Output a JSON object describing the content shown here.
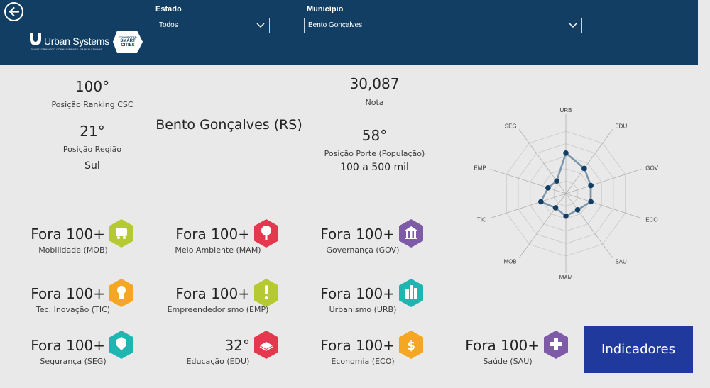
{
  "header": {
    "logo_text": "Urban Systems",
    "logo_tagline": "TRANSFORMANDO CONHECIMENTO EM RESULTADOS",
    "badge_text": [
      "CONNECTED",
      "SMART",
      "CITIES"
    ],
    "estado_label": "Estado",
    "estado_value": "Todos",
    "municipio_label": "Município",
    "municipio_value": "Bento Gonçalves"
  },
  "summary": {
    "city": "Bento Gonçalves (RS)",
    "ranking_value": "100°",
    "ranking_label": "Posição Ranking CSC",
    "region_value": "21°",
    "region_label": "Posição Região",
    "region_name": "Sul",
    "score_value": "30,087",
    "score_label": "Nota",
    "size_value": "58°",
    "size_label": "Posição Porte (População)",
    "size_range": "100 a 500 mil"
  },
  "tiles": [
    {
      "value": "Fora 100+",
      "label": "Mobilidade (MOB)",
      "color": "#b5c932",
      "icon": "bus-icon"
    },
    {
      "value": "Fora 100+",
      "label": "Meio Ambiente (MAM)",
      "color": "#e5384f",
      "icon": "tree-icon"
    },
    {
      "value": "Fora 100+",
      "label": "Governança (GOV)",
      "color": "#7d5ba6",
      "icon": "government-building-icon"
    },
    {
      "value": "Fora 100+",
      "label": "Tec. Inovação (TIC)",
      "color": "#f5a623",
      "icon": "lightbulb-icon"
    },
    {
      "value": "Fora 100+",
      "label": "Empreendedorismo (EMP)",
      "color": "#b5c932",
      "icon": "exclamation-icon"
    },
    {
      "value": "Fora 100+",
      "label": "Urbanismo (URB)",
      "color": "#1fb5b0",
      "icon": "city-buildings-icon"
    },
    {
      "value": "Fora 100+",
      "label": "Segurança (SEG)",
      "color": "#1fb5b0",
      "icon": "shield-icon"
    },
    {
      "value": "32°",
      "label": "Educação (EDU)",
      "color": "#e5384f",
      "icon": "book-icon"
    },
    {
      "value": "Fora 100+",
      "label": "Economia (ECO)",
      "color": "#f5a623",
      "icon": "money-icon"
    },
    {
      "value": "Fora 100+",
      "label": "Saúde (SAU)",
      "color": "#7d5ba6",
      "icon": "health-cross-icon"
    }
  ],
  "chart_data": {
    "type": "radar",
    "categories": [
      "URB",
      "EDU",
      "GOV",
      "ECO",
      "SAU",
      "MAM",
      "MOB",
      "TIC",
      "EMP",
      "SEG"
    ],
    "values": [
      0.65,
      0.5,
      0.42,
      0.42,
      0.32,
      0.36,
      0.28,
      0.42,
      0.3,
      0.25
    ],
    "ylim": [
      0,
      1
    ],
    "grid": true,
    "series_color": "#7a94ab",
    "point_color": "#123e64"
  },
  "button": {
    "label": "Indicadores"
  }
}
